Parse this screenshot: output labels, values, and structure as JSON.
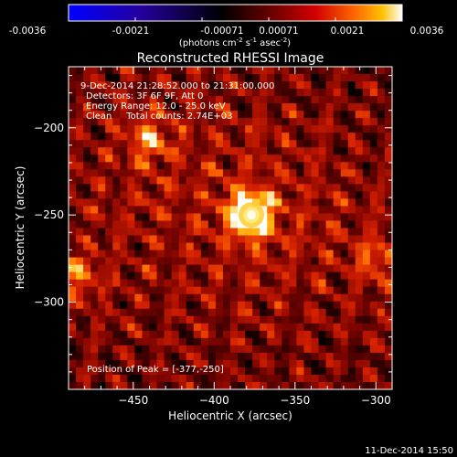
{
  "colors": {
    "background": "#000000",
    "foreground": "#ffffff",
    "colormap": [
      "#0000ff",
      "#1a0099",
      "#000000",
      "#6a0000",
      "#c80000",
      "#ff5500",
      "#ffb000",
      "#ffffff"
    ]
  },
  "colorbar": {
    "ticks": [
      "-0.0036",
      "-0.0021",
      "-0.00071",
      "0.00071",
      "0.0021",
      "0.0036"
    ],
    "unit_main": "(photons cm",
    "unit_exp1": "-2",
    "unit_mid": " s",
    "unit_exp2": "-1",
    "unit_tail": " asec",
    "unit_exp3": "-2",
    "unit_close": ")"
  },
  "info": {
    "line1": "9-Dec-2014 21:28:52.000 to 21:31:00.000",
    "line2": "Detectors: 3F 6F 9F, Att 0",
    "line3": "Energy Range: 12.0 - 25.0 keV",
    "line4": "Clean     Total counts: 2.74E+03",
    "peak": "Position of Peak = [-377,-250]"
  },
  "footer": {
    "timestamp": "11-Dec-2014 15:50"
  },
  "chart_data": {
    "type": "heatmap",
    "title": "Reconstructed RHESSI Image",
    "xlabel": "Heliocentric X (arcsec)",
    "ylabel": "Heliocentric Y (arcsec)",
    "xlim": [
      -490,
      -290
    ],
    "ylim": [
      -350,
      -165
    ],
    "xticks": [
      -450,
      -400,
      -350,
      -300
    ],
    "yticks": [
      -200,
      -250,
      -300
    ],
    "xtick_labels": [
      "−450",
      "−400",
      "−350",
      "−300"
    ],
    "ytick_labels": [
      "−200",
      "−250",
      "−300"
    ],
    "colorbar_range": [
      -0.0036,
      0.0036
    ],
    "peak": {
      "x": -377,
      "y": -250,
      "value": 0.0036
    },
    "sources": [
      {
        "x": -377,
        "y": -250,
        "value": 0.0036
      },
      {
        "x": -440,
        "y": -207,
        "value": 0.0016
      },
      {
        "x": -484,
        "y": -285,
        "value": 0.0014
      },
      {
        "x": -300,
        "y": -275,
        "value": 0.0013
      }
    ]
  }
}
